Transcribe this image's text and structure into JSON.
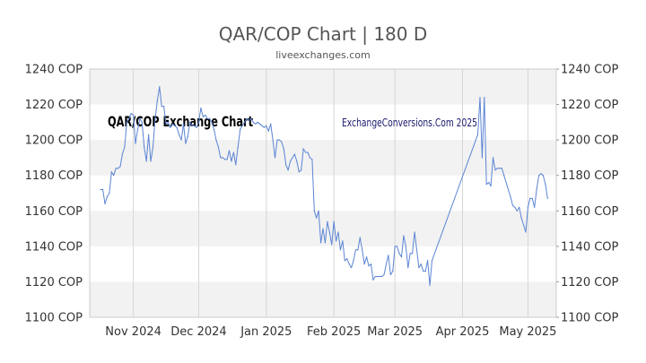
{
  "title": "QAR/COP Chart | 180 D",
  "subtitle": "liveexchanges.com",
  "colors": {
    "line": "#5b84d4",
    "band": "#f2f2f2",
    "frame": "#cccccc",
    "gridline": "#d6d6d6",
    "text": "#333333"
  },
  "chart_data": {
    "type": "line",
    "title": "QAR/COP Chart | 180 D",
    "subtitle": "liveexchanges.com",
    "xlabel": "",
    "ylabel": "",
    "ylim": [
      1100,
      1240
    ],
    "xlim": [
      "2024-10-12",
      "2025-05-14"
    ],
    "y_ticks": [
      1100,
      1120,
      1140,
      1160,
      1180,
      1200,
      1220,
      1240
    ],
    "y_tick_labels": [
      "1100 COP",
      "1120 COP",
      "1140 COP",
      "1160 COP",
      "1180 COP",
      "1200 COP",
      "1220 COP",
      "1240 COP"
    ],
    "x_ticks": [
      "2024-11-01",
      "2024-12-01",
      "2025-01-01",
      "2025-02-01",
      "2025-03-01",
      "2025-04-01",
      "2025-05-01"
    ],
    "x_tick_labels": [
      "Nov 2024",
      "Dec 2024",
      "Jan 2025",
      "Feb 2025",
      "Mar 2025",
      "Apr 2025",
      "May 2025"
    ],
    "y_axes": [
      "left",
      "right"
    ],
    "grid": "alternating horizontal bands, vertical lines at month ticks",
    "legend": "none",
    "annotations": [
      "QAR/COP Exchange Chart",
      "ExchangeConversions.Com 2025"
    ],
    "series": [
      {
        "values": [
          [
            "2024-10-17",
            1172
          ],
          [
            "2024-10-18",
            1172
          ],
          [
            "2024-10-19",
            1164
          ],
          [
            "2024-10-20",
            1168
          ],
          [
            "2024-10-21",
            1170
          ],
          [
            "2024-10-22",
            1182
          ],
          [
            "2024-10-23",
            1180
          ],
          [
            "2024-10-24",
            1184
          ],
          [
            "2024-10-25",
            1184
          ],
          [
            "2024-10-26",
            1185
          ],
          [
            "2024-10-27",
            1192
          ],
          [
            "2024-10-28",
            1196
          ],
          [
            "2024-10-29",
            1210
          ],
          [
            "2024-10-30",
            1212
          ],
          [
            "2024-10-31",
            1215
          ],
          [
            "2024-11-01",
            1214
          ],
          [
            "2024-11-02",
            1198
          ],
          [
            "2024-11-03",
            1206
          ],
          [
            "2024-11-04",
            1212
          ],
          [
            "2024-11-05",
            1210
          ],
          [
            "2024-11-06",
            1196
          ],
          [
            "2024-11-07",
            1188
          ],
          [
            "2024-11-08",
            1203
          ],
          [
            "2024-11-09",
            1188
          ],
          [
            "2024-11-10",
            1196
          ],
          [
            "2024-11-11",
            1212
          ],
          [
            "2024-11-12",
            1222
          ],
          [
            "2024-11-13",
            1230
          ],
          [
            "2024-11-14",
            1219
          ],
          [
            "2024-11-15",
            1219
          ],
          [
            "2024-11-16",
            1209
          ],
          [
            "2024-11-17",
            1210
          ],
          [
            "2024-11-18",
            1207
          ],
          [
            "2024-11-19",
            1209
          ],
          [
            "2024-11-20",
            1208
          ],
          [
            "2024-11-21",
            1207
          ],
          [
            "2024-11-22",
            1203
          ],
          [
            "2024-11-23",
            1200
          ],
          [
            "2024-11-24",
            1209
          ],
          [
            "2024-11-25",
            1198
          ],
          [
            "2024-11-26",
            1202
          ],
          [
            "2024-11-27",
            1210
          ],
          [
            "2024-11-28",
            1208
          ],
          [
            "2024-11-29",
            1208
          ],
          [
            "2024-11-30",
            1207
          ],
          [
            "2024-12-01",
            1210
          ],
          [
            "2024-12-02",
            1218
          ],
          [
            "2024-12-03",
            1213
          ],
          [
            "2024-12-04",
            1214
          ],
          [
            "2024-12-05",
            1212
          ],
          [
            "2024-12-06",
            1212
          ],
          [
            "2024-12-07",
            1210
          ],
          [
            "2024-12-08",
            1206
          ],
          [
            "2024-12-09",
            1200
          ],
          [
            "2024-12-10",
            1196
          ],
          [
            "2024-12-11",
            1190
          ],
          [
            "2024-12-12",
            1190
          ],
          [
            "2024-12-13",
            1189
          ],
          [
            "2024-12-14",
            1189
          ],
          [
            "2024-12-15",
            1194
          ],
          [
            "2024-12-16",
            1188
          ],
          [
            "2024-12-17",
            1193
          ],
          [
            "2024-12-18",
            1186
          ],
          [
            "2024-12-19",
            1196
          ],
          [
            "2024-12-20",
            1206
          ],
          [
            "2024-12-21",
            1208
          ],
          [
            "2024-12-22",
            1210
          ],
          [
            "2024-12-23",
            1212
          ],
          [
            "2024-12-24",
            1211
          ],
          [
            "2024-12-25",
            1212
          ],
          [
            "2024-12-26",
            1210
          ],
          [
            "2024-12-27",
            1209
          ],
          [
            "2024-12-28",
            1210
          ],
          [
            "2024-12-29",
            1209
          ],
          [
            "2024-12-30",
            1208
          ],
          [
            "2024-12-31",
            1207
          ],
          [
            "2025-01-01",
            1208
          ],
          [
            "2025-01-02",
            1205
          ],
          [
            "2025-01-03",
            1209
          ],
          [
            "2025-01-04",
            1200
          ],
          [
            "2025-01-05",
            1190
          ],
          [
            "2025-01-06",
            1200
          ],
          [
            "2025-01-07",
            1200
          ],
          [
            "2025-01-08",
            1199
          ],
          [
            "2025-01-09",
            1195
          ],
          [
            "2025-01-10",
            1186
          ],
          [
            "2025-01-11",
            1183
          ],
          [
            "2025-01-12",
            1188
          ],
          [
            "2025-01-13",
            1190
          ],
          [
            "2025-01-14",
            1192
          ],
          [
            "2025-01-15",
            1188
          ],
          [
            "2025-01-16",
            1182
          ],
          [
            "2025-01-17",
            1183
          ],
          [
            "2025-01-18",
            1195
          ],
          [
            "2025-01-19",
            1193
          ],
          [
            "2025-01-20",
            1193
          ],
          [
            "2025-01-21",
            1190
          ],
          [
            "2025-01-22",
            1189
          ],
          [
            "2025-01-23",
            1160
          ],
          [
            "2025-01-24",
            1156
          ],
          [
            "2025-01-25",
            1160
          ],
          [
            "2025-01-26",
            1142
          ],
          [
            "2025-01-27",
            1150
          ],
          [
            "2025-01-28",
            1142
          ],
          [
            "2025-01-29",
            1154
          ],
          [
            "2025-01-30",
            1148
          ],
          [
            "2025-01-31",
            1141
          ],
          [
            "2025-02-01",
            1154
          ],
          [
            "2025-02-02",
            1143
          ],
          [
            "2025-02-03",
            1148
          ],
          [
            "2025-02-04",
            1138
          ],
          [
            "2025-02-05",
            1143
          ],
          [
            "2025-02-06",
            1132
          ],
          [
            "2025-02-07",
            1133
          ],
          [
            "2025-02-08",
            1130
          ],
          [
            "2025-02-09",
            1128
          ],
          [
            "2025-02-10",
            1132
          ],
          [
            "2025-02-11",
            1138
          ],
          [
            "2025-02-12",
            1138
          ],
          [
            "2025-02-13",
            1145
          ],
          [
            "2025-02-14",
            1138
          ],
          [
            "2025-02-15",
            1130
          ],
          [
            "2025-02-16",
            1134
          ],
          [
            "2025-02-17",
            1129
          ],
          [
            "2025-02-18",
            1130
          ],
          [
            "2025-02-19",
            1121
          ],
          [
            "2025-02-20",
            1123
          ],
          [
            "2025-02-21",
            1123
          ],
          [
            "2025-02-22",
            1123
          ],
          [
            "2025-02-23",
            1123
          ],
          [
            "2025-02-24",
            1124
          ],
          [
            "2025-02-25",
            1130
          ],
          [
            "2025-02-26",
            1135
          ],
          [
            "2025-02-27",
            1124
          ],
          [
            "2025-02-28",
            1126
          ],
          [
            "2025-03-01",
            1140
          ],
          [
            "2025-03-02",
            1140
          ],
          [
            "2025-03-03",
            1136
          ],
          [
            "2025-03-04",
            1134
          ],
          [
            "2025-03-05",
            1146
          ],
          [
            "2025-03-06",
            1140
          ],
          [
            "2025-03-07",
            1128
          ],
          [
            "2025-03-08",
            1136
          ],
          [
            "2025-03-09",
            1136
          ],
          [
            "2025-03-10",
            1148
          ],
          [
            "2025-03-11",
            1138
          ],
          [
            "2025-03-12",
            1128
          ],
          [
            "2025-03-13",
            1130
          ],
          [
            "2025-03-14",
            1126
          ],
          [
            "2025-03-15",
            1126
          ],
          [
            "2025-03-16",
            1132
          ],
          [
            "2025-03-17",
            1118
          ],
          [
            "2025-03-18",
            1132
          ],
          [
            "2025-04-08",
            1203
          ],
          [
            "2025-04-09",
            1224
          ],
          [
            "2025-04-10",
            1190
          ],
          [
            "2025-04-11",
            1224
          ],
          [
            "2025-04-12",
            1175
          ],
          [
            "2025-04-13",
            1176
          ],
          [
            "2025-04-14",
            1174
          ],
          [
            "2025-04-15",
            1190
          ],
          [
            "2025-04-16",
            1183
          ],
          [
            "2025-04-17",
            1184
          ],
          [
            "2025-04-18",
            1184
          ],
          [
            "2025-04-19",
            1184
          ],
          [
            "2025-04-20",
            1180
          ],
          [
            "2025-04-21",
            1176
          ],
          [
            "2025-04-22",
            1172
          ],
          [
            "2025-04-23",
            1168
          ],
          [
            "2025-04-24",
            1163
          ],
          [
            "2025-04-25",
            1162
          ],
          [
            "2025-04-26",
            1160
          ],
          [
            "2025-04-27",
            1162
          ],
          [
            "2025-04-28",
            1156
          ],
          [
            "2025-04-29",
            1152
          ],
          [
            "2025-04-30",
            1148
          ],
          [
            "2025-05-01",
            1162
          ],
          [
            "2025-05-02",
            1167
          ],
          [
            "2025-05-03",
            1167
          ],
          [
            "2025-05-04",
            1162
          ],
          [
            "2025-05-05",
            1172
          ],
          [
            "2025-05-06",
            1180
          ],
          [
            "2025-05-07",
            1181
          ],
          [
            "2025-05-08",
            1180
          ],
          [
            "2025-05-09",
            1175
          ],
          [
            "2025-05-10",
            1167
          ]
        ]
      }
    ]
  }
}
